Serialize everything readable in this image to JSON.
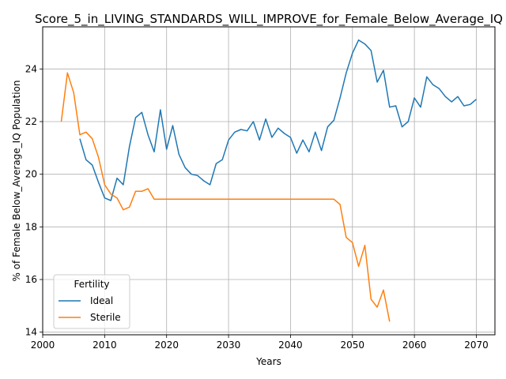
{
  "chart_data": {
    "type": "line",
    "title": "Score_5_in_LIVING_STANDARDS_WILL_IMPROVE_for_Female_Below_Average_IQ",
    "xlabel": "Years",
    "ylabel": "% of Female Below_Average_IQ Population",
    "xlim": [
      2000,
      2073
    ],
    "ylim": [
      13.9,
      25.6
    ],
    "xticks": [
      2000,
      2010,
      2020,
      2030,
      2040,
      2050,
      2060,
      2070
    ],
    "yticks": [
      14,
      16,
      18,
      20,
      22,
      24
    ],
    "grid": true,
    "legend": {
      "title": "Fertility",
      "placement": "lower-left"
    },
    "series": [
      {
        "name": "Ideal",
        "color": "#1f77b4",
        "x": [
          2006,
          2007,
          2008,
          2009,
          2010,
          2011,
          2012,
          2013,
          2014,
          2015,
          2016,
          2017,
          2018,
          2019,
          2020,
          2021,
          2022,
          2023,
          2024,
          2025,
          2026,
          2027,
          2028,
          2029,
          2030,
          2031,
          2032,
          2033,
          2034,
          2035,
          2036,
          2037,
          2038,
          2039,
          2040,
          2041,
          2042,
          2043,
          2044,
          2045,
          2046,
          2047,
          2048,
          2049,
          2050,
          2051,
          2052,
          2053,
          2054,
          2055,
          2056,
          2057,
          2058,
          2059,
          2060,
          2061,
          2062,
          2063,
          2064,
          2065,
          2066,
          2067,
          2068,
          2069,
          2070
        ],
        "y": [
          21.35,
          20.55,
          20.35,
          19.7,
          19.1,
          19.0,
          19.85,
          19.6,
          21.05,
          22.15,
          22.35,
          21.5,
          20.85,
          22.45,
          20.95,
          21.85,
          20.75,
          20.25,
          20.0,
          19.95,
          19.75,
          19.6,
          20.4,
          20.55,
          21.3,
          21.6,
          21.7,
          21.65,
          22.0,
          21.3,
          22.1,
          21.4,
          21.75,
          21.55,
          21.4,
          20.8,
          21.3,
          20.85,
          21.6,
          20.9,
          21.8,
          22.05,
          22.9,
          23.85,
          24.6,
          25.1,
          24.95,
          24.7,
          23.5,
          23.95,
          22.55,
          22.6,
          21.8,
          22.0,
          22.9,
          22.55,
          23.7,
          23.4,
          23.25,
          22.95,
          22.75,
          22.95,
          22.6,
          22.65,
          22.85
        ]
      },
      {
        "name": "Sterile",
        "color": "#ff7f0e",
        "x": [
          2003,
          2004,
          2005,
          2006,
          2007,
          2008,
          2009,
          2010,
          2011,
          2012,
          2013,
          2014,
          2015,
          2016,
          2017,
          2018,
          2019,
          2020,
          2021,
          2022,
          2023,
          2024,
          2025,
          2026,
          2027,
          2028,
          2029,
          2030,
          2031,
          2032,
          2033,
          2034,
          2035,
          2036,
          2037,
          2038,
          2039,
          2040,
          2041,
          2042,
          2043,
          2044,
          2045,
          2046,
          2047,
          2048,
          2049,
          2050,
          2051,
          2052,
          2053,
          2054,
          2055,
          2056
        ],
        "y": [
          22.0,
          23.85,
          23.1,
          21.5,
          21.6,
          21.35,
          20.65,
          19.6,
          19.25,
          19.1,
          18.65,
          18.75,
          19.35,
          19.35,
          19.45,
          19.05,
          19.05,
          19.05,
          19.05,
          19.05,
          19.05,
          19.05,
          19.05,
          19.05,
          19.05,
          19.05,
          19.05,
          19.05,
          19.05,
          19.05,
          19.05,
          19.05,
          19.05,
          19.05,
          19.05,
          19.05,
          19.05,
          19.05,
          19.05,
          19.05,
          19.05,
          19.05,
          19.05,
          19.05,
          19.05,
          18.85,
          17.6,
          17.4,
          16.5,
          17.3,
          15.25,
          14.95,
          15.6,
          14.4
        ]
      }
    ]
  }
}
